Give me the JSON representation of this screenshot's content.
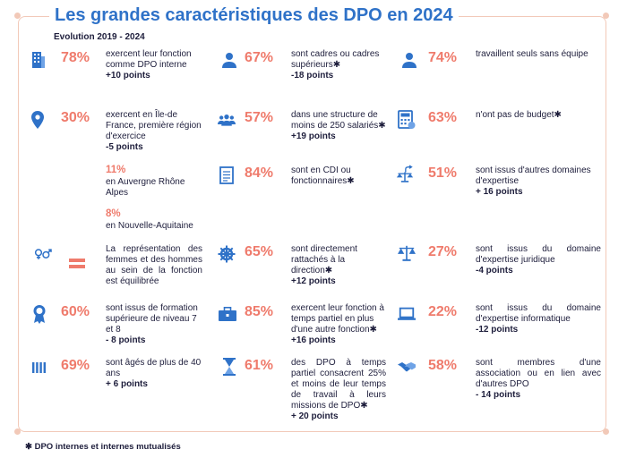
{
  "title": "Les grandes caractéristiques des DPO en 2024",
  "subtitle": "Evolution 2019 - 2024",
  "footnote": "✱ DPO internes et internes mutualisés",
  "colors": {
    "accent": "#ef7b6c",
    "blue": "#2f72c8",
    "frame": "#f2c9b8",
    "text": "#1e1e3c"
  },
  "stats": {
    "internal": {
      "icon": "building-icon",
      "pct": "78%",
      "text": "exercent leur fonction comme DPO interne",
      "points": "+10 points"
    },
    "idf": {
      "icon": "location-pin-icon",
      "pct": "30%",
      "text": "exercent en Île-de France, première région d'exercice",
      "points": "-5 points"
    },
    "aura": {
      "pct": "11%",
      "text": "en Auvergne Rhône Alpes"
    },
    "naq": {
      "pct": "8%",
      "text": "en Nouvelle-Aquitaine"
    },
    "gender": {
      "icon": "gender-icon",
      "text": "La représentation des femmes et des hommes au sein de la fonction est équilibrée"
    },
    "edu": {
      "icon": "medal-icon",
      "pct": "60%",
      "text": "sont issus de formation supérieure de niveau 7 et 8",
      "points": "- 8 points"
    },
    "age": {
      "icon": "age-bars-icon",
      "pct": "69%",
      "text": "sont âgés de plus de 40 ans",
      "points": "+ 6 points"
    },
    "cadres": {
      "icon": "person-icon",
      "pct": "67%",
      "text": "sont cadres ou cadres supérieurs✱",
      "points": "-18 points"
    },
    "small": {
      "icon": "group-icon",
      "pct": "57%",
      "text": "dans une structure de moins de 250 salariés✱",
      "points": "+19 points"
    },
    "cdi": {
      "icon": "document-icon",
      "pct": "84%",
      "text": "sont en CDI ou fonctionnaires✱"
    },
    "direction": {
      "icon": "helm-icon",
      "pct": "65%",
      "text": "sont directement rattachés à la direction✱",
      "points": "+12 points"
    },
    "parttime": {
      "icon": "briefcase-icon",
      "pct": "85%",
      "text": "exercent leur fonction à temps partiel en plus d'une autre fonction✱",
      "points": "+16 points"
    },
    "quarter": {
      "icon": "hourglass-icon",
      "pct": "61%",
      "text": "des DPO à temps partiel consacrent 25% et moins de leur temps de travail à leurs missions de DPO✱",
      "points": "+ 20 points"
    },
    "alone": {
      "icon": "single-person-icon",
      "pct": "74%",
      "text": "travaillent seuls sans équipe"
    },
    "budget": {
      "icon": "calculator-icon",
      "pct": "63%",
      "text": "n'ont pas de budget✱"
    },
    "otherdomain": {
      "icon": "scale-arrow-icon",
      "pct": "51%",
      "text": "sont issus d'autres domaines d'expertise",
      "points": "+ 16 points"
    },
    "legal": {
      "icon": "scale-icon",
      "pct": "27%",
      "text": "sont issus du domaine d'expertise juridique",
      "points": "-4 points"
    },
    "it": {
      "icon": "laptop-icon",
      "pct": "22%",
      "text": "sont issus du domaine d'expertise informatique",
      "points": "-12 points"
    },
    "assoc": {
      "icon": "handshake-icon",
      "pct": "58%",
      "text": "sont membres d'une association ou en lien avec d'autres DPO",
      "points": "- 14 points"
    }
  }
}
